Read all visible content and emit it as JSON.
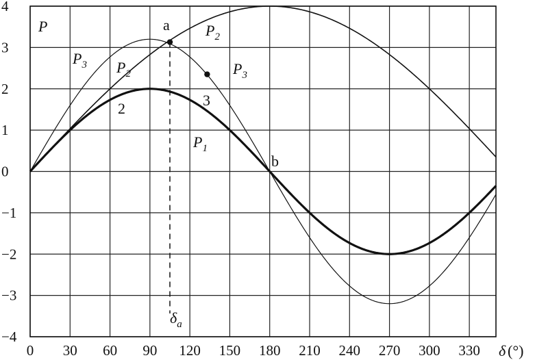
{
  "chart_data": {
    "type": "line",
    "xlabel": "δ(°)",
    "ylabel": "P",
    "xlim": [
      0,
      350
    ],
    "ylim": [
      -4,
      4
    ],
    "x_ticks": [
      "0",
      "30",
      "60",
      "90",
      "120",
      "150",
      "180",
      "210",
      "240",
      "270",
      "300",
      "330"
    ],
    "y_ticks": [
      "4",
      "3",
      "2",
      "1",
      "0",
      "-1",
      "-2",
      "-3",
      "-4"
    ],
    "grid": true,
    "series": [
      {
        "name": "P1",
        "formula": "2·sin(δ)",
        "amplitude": 2,
        "weight": "bold"
      },
      {
        "name": "P2",
        "formula": "4·sin(δ/2)",
        "amplitude": 4,
        "weight": "normal"
      },
      {
        "name": "P3",
        "formula": "3.2·sin(δ)",
        "amplitude": 3.2,
        "weight": "thin"
      }
    ],
    "points": [
      {
        "name": "a",
        "x": 105,
        "y": 3.13
      },
      {
        "name": "b",
        "x": 180,
        "y": 0
      },
      {
        "name": "",
        "x": 133,
        "y": 2.35
      }
    ],
    "vline": {
      "x": 105,
      "label": "δa"
    },
    "annotations": {
      "p_label": "P",
      "p3_left": "P3",
      "p2_left": "P2",
      "p2_top": "P2",
      "p3_right": "P3",
      "p1": "P1",
      "num2": "2",
      "num3": "3",
      "a": "a",
      "b": "b"
    }
  }
}
